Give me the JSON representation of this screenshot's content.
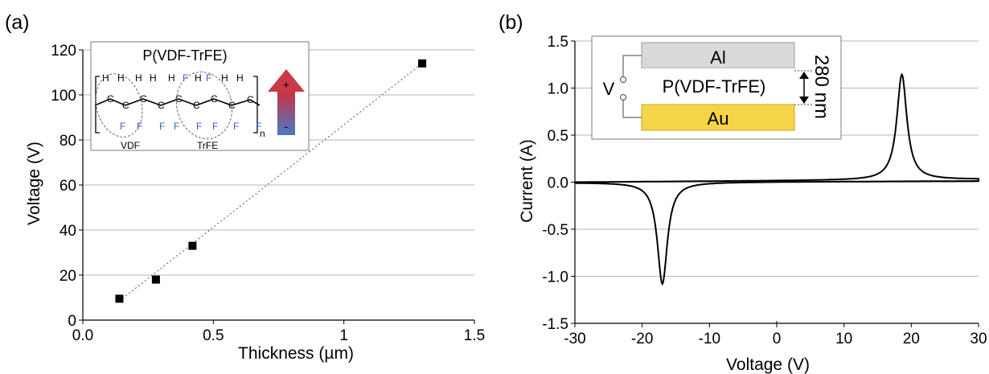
{
  "chart_data": [
    {
      "type": "scatter",
      "panel_label": "(a)",
      "xlabel": "Thickness (µm)",
      "ylabel": "Voltage (V)",
      "xlim": [
        0,
        1.5
      ],
      "ylim": [
        0,
        120
      ],
      "xticks": [
        "0.0",
        "0.5",
        "1",
        "1.5"
      ],
      "yticks": [
        "0",
        "20",
        "40",
        "60",
        "80",
        "100",
        "120"
      ],
      "grid": "horizontal",
      "points": [
        {
          "x": 0.14,
          "y": 9.5
        },
        {
          "x": 0.28,
          "y": 18
        },
        {
          "x": 0.42,
          "y": 33
        },
        {
          "x": 1.3,
          "y": 114
        }
      ],
      "fit_line": {
        "style": "dotted",
        "from": {
          "x": 0.14,
          "y": 8.5
        },
        "to": {
          "x": 1.3,
          "y": 114
        }
      },
      "inset": {
        "title": "P(VDF-TrFE)",
        "monomer_labels": [
          "VDF",
          "TrFE"
        ],
        "subscript": "n",
        "arrow_plus": "+",
        "arrow_minus": "-",
        "atoms": {
          "h": "H",
          "c": "C",
          "f": "F"
        }
      }
    },
    {
      "type": "line",
      "panel_label": "(b)",
      "xlabel": "Voltage (V)",
      "ylabel": "Current (A)",
      "xlim": [
        -30,
        30
      ],
      "ylim": [
        -1.5,
        1.5
      ],
      "xticks": [
        "-30",
        "-20",
        "-10",
        "0",
        "10",
        "20",
        "30"
      ],
      "yticks": [
        "-1.5",
        "-1.0",
        "-0.5",
        "0.0",
        "0.5",
        "1.0",
        "1.5"
      ],
      "grid": "horizontal",
      "curve": {
        "peaks": [
          {
            "x": 18.6,
            "y": 1.12
          },
          {
            "x": -17,
            "y": -1.08
          }
        ],
        "baseline": {
          "from": {
            "x": -30,
            "y": 0.0
          },
          "to": {
            "x": 30,
            "y": 0.03
          }
        }
      },
      "inset": {
        "source_label": "V",
        "top_layer": "Al",
        "middle_layer": "P(VDF-TrFE)",
        "bottom_layer": "Au",
        "thickness": "280 nm",
        "colors": {
          "top": "#d9d9d9",
          "bottom": "#f5d547"
        }
      }
    }
  ]
}
